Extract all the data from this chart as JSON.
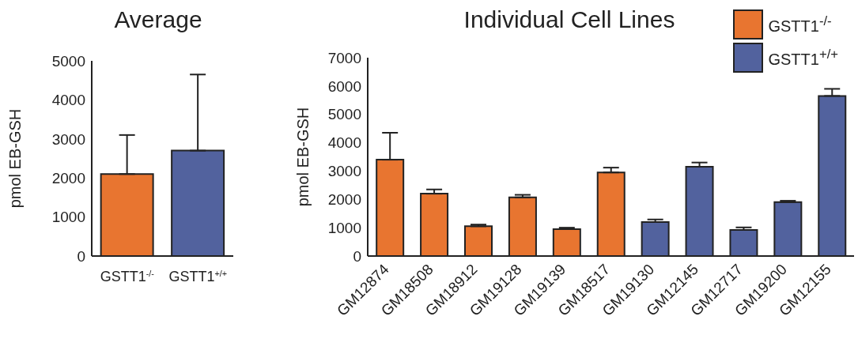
{
  "chart_data": [
    {
      "type": "bar",
      "title": "Average",
      "ylabel": "pmol EB-GSH",
      "categories": [
        "GSTT1$^{-/-}$",
        "GSTT1$^{+/+}$"
      ],
      "values": [
        2100,
        2700
      ],
      "colors": [
        "#e87530",
        "#52629e"
      ],
      "errors": [
        [
          2100,
          3100
        ],
        [
          2700,
          4650
        ]
      ],
      "ylim": [
        0,
        5000
      ],
      "yticks": [
        0,
        1000,
        2000,
        3000,
        4000,
        5000
      ]
    },
    {
      "type": "bar",
      "title": "Individual Cell Lines",
      "ylabel": "pmol EB-GSH",
      "categories": [
        "GM12874",
        "GM18508",
        "GM18912",
        "GM19128",
        "GM19139",
        "GM18517",
        "GM19130",
        "GM12145",
        "GM12717",
        "GM19200",
        "GM12155"
      ],
      "stacked": true,
      "legend": "top right",
      "ylim": [
        0,
        7000
      ],
      "yticks": [
        0,
        1000,
        2000,
        3000,
        4000,
        5000,
        6000,
        7000
      ],
      "series": [
        {
          "name": "GSTT1$^{-/-}$",
          "color": "#e87530",
          "values": [
            3400,
            2200,
            1050,
            2070,
            950,
            2950,
            null,
            null,
            null,
            null,
            null
          ],
          "errors": [
            [
              3400,
              4350
            ],
            [
              2200,
              2350
            ],
            [
              1050,
              1110
            ],
            [
              2070,
              2160
            ],
            [
              950,
              1000
            ],
            [
              2950,
              3120
            ],
            null,
            null,
            null,
            null,
            null
          ]
        },
        {
          "name": "GSTT1$^{+/+}$",
          "color": "#52629e",
          "values": [
            null,
            null,
            null,
            null,
            null,
            null,
            1200,
            3150,
            920,
            1900,
            5650
          ],
          "errors": [
            null,
            null,
            null,
            null,
            null,
            null,
            [
              1200,
              1290
            ],
            [
              3150,
              3300
            ],
            [
              920,
              1010
            ],
            [
              1900,
              1950
            ],
            [
              5650,
              5900
            ]
          ]
        }
      ]
    }
  ]
}
